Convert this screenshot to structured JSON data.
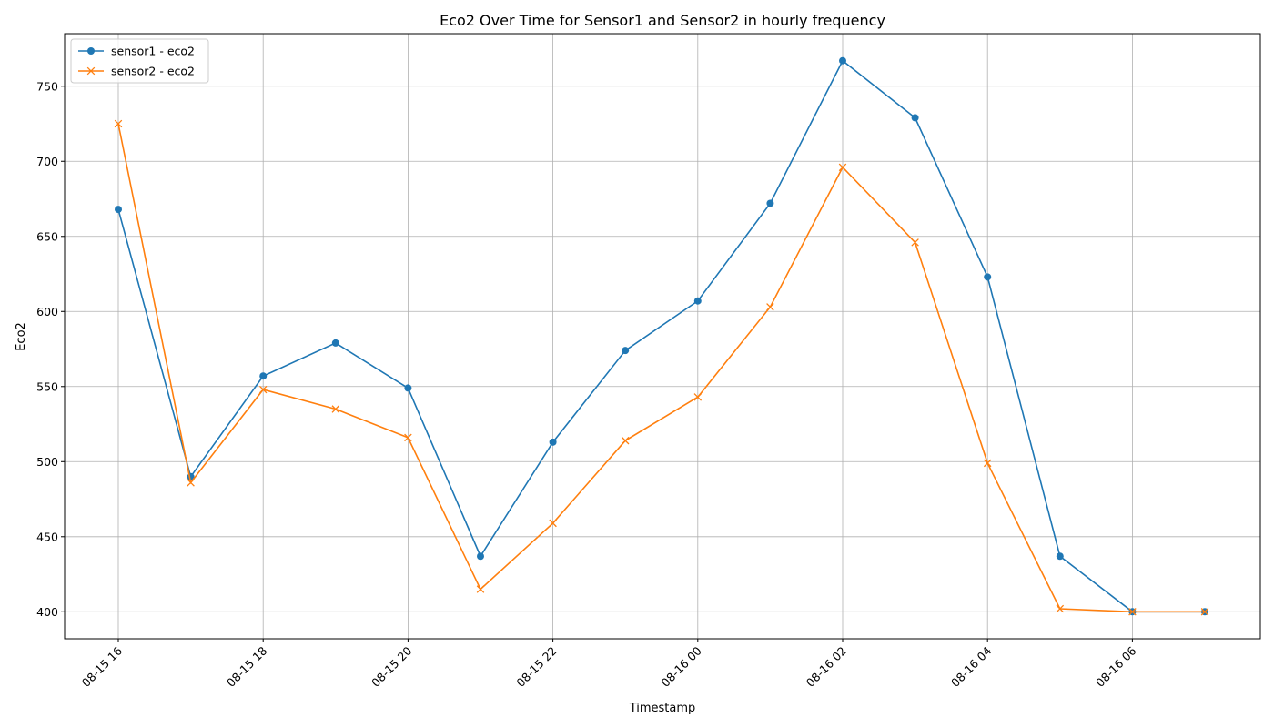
{
  "chart_data": {
    "type": "line",
    "title": "Eco2 Over Time for Sensor1 and Sensor2 in hourly frequency",
    "xlabel": "Timestamp",
    "ylabel": "Eco2",
    "x": [
      "2023-08-15 16:00",
      "2023-08-15 17:00",
      "2023-08-15 18:00",
      "2023-08-15 19:00",
      "2023-08-15 20:00",
      "2023-08-15 21:00",
      "2023-08-15 22:00",
      "2023-08-15 23:00",
      "2023-08-16 00:00",
      "2023-08-16 01:00",
      "2023-08-16 02:00",
      "2023-08-16 03:00",
      "2023-08-16 04:00",
      "2023-08-16 05:00",
      "2023-08-16 06:00",
      "2023-08-16 07:00"
    ],
    "xticks": [
      "08-15 16",
      "08-15 18",
      "08-15 20",
      "08-15 22",
      "08-16 00",
      "08-16 02",
      "08-16 04",
      "08-16 06"
    ],
    "yticks": [
      400,
      450,
      500,
      550,
      600,
      650,
      700,
      750
    ],
    "ylim": [
      382,
      785
    ],
    "grid": true,
    "legend_position": "top-left",
    "series": [
      {
        "name": "sensor1 - eco2",
        "color": "#1f77b4",
        "marker": "circle",
        "values": [
          668,
          490,
          557,
          579,
          549,
          437,
          513,
          574,
          607,
          672,
          767,
          729,
          623,
          437,
          400,
          400
        ]
      },
      {
        "name": "sensor2 - eco2",
        "color": "#ff7f0e",
        "marker": "x",
        "values": [
          725,
          486,
          548,
          535,
          516,
          415,
          459,
          514,
          543,
          603,
          696,
          646,
          499,
          402,
          400,
          400
        ]
      }
    ]
  }
}
